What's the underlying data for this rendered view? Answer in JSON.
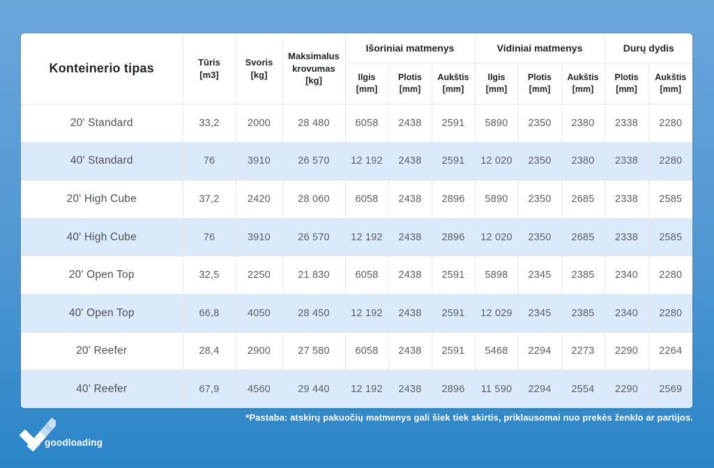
{
  "colors": {
    "background_top": "#6aa6da",
    "background_bottom": "#2a85c8",
    "row_alt": "#dbeafb",
    "card": "#ffffff",
    "header_text": "#1f2226",
    "cell_text": "#5a5e63",
    "footnote_text": "#ffffff"
  },
  "table": {
    "header": {
      "type": "Konteinerio tipas",
      "volume": "Tūris\n[m3]",
      "weight": "Svoris\n[kg]",
      "max_load": "Maksimalus\nkrovumas\n[kg]",
      "group_external": "Išoriniai matmenys",
      "group_internal": "Vidiniai matmenys",
      "group_door": "Durų dydis",
      "sub": [
        "Ilgis\n[mm]",
        "Plotis\n[mm]",
        "Aukštis\n[mm]",
        "Ilgis\n[mm]",
        "Plotis\n[mm]",
        "Aukštis\n[mm]",
        "Plotis\n[mm]",
        "Aukštis\n[mm]"
      ]
    },
    "rows": [
      {
        "cells": [
          "20' Standard",
          "33,2",
          "2000",
          "28 480",
          "6058",
          "2438",
          "2591",
          "5890",
          "2350",
          "2380",
          "2338",
          "2280"
        ]
      },
      {
        "cells": [
          "40' Standard",
          "76",
          "3910",
          "26 570",
          "12 192",
          "2438",
          "2591",
          "12 020",
          "2350",
          "2380",
          "2338",
          "2280"
        ]
      },
      {
        "cells": [
          "20' High Cube",
          "37,2",
          "2420",
          "28 060",
          "6058",
          "2438",
          "2896",
          "5890",
          "2350",
          "2685",
          "2338",
          "2585"
        ]
      },
      {
        "cells": [
          "40' High Cube",
          "76",
          "3910",
          "26 570",
          "12 192",
          "2438",
          "2896",
          "12 020",
          "2350",
          "2685",
          "2338",
          "2585"
        ]
      },
      {
        "cells": [
          "20' Open Top",
          "32,5",
          "2250",
          "21 830",
          "6058",
          "2438",
          "2591",
          "5898",
          "2345",
          "2385",
          "2340",
          "2280"
        ]
      },
      {
        "cells": [
          "40' Open Top",
          "66,8",
          "4050",
          "28 450",
          "12 192",
          "2438",
          "2591",
          "12 029",
          "2345",
          "2385",
          "2340",
          "2280"
        ]
      },
      {
        "cells": [
          "20' Reefer",
          "28,4",
          "2900",
          "27 580",
          "6058",
          "2438",
          "2591",
          "5468",
          "2294",
          "2273",
          "2290",
          "2264"
        ]
      },
      {
        "cells": [
          "40' Reefer",
          "67,9",
          "4560",
          "29 440",
          "12 192",
          "2438",
          "2896",
          "11 590",
          "2294",
          "2554",
          "2290",
          "2569"
        ]
      }
    ]
  },
  "footnote": "*Pastaba: atskirų pakuočių matmenys gali šiek tiek skirtis, priklausomai nuo prekės ženklo ar partijos.",
  "logo": {
    "text": "goodloading",
    "icon": "checkmark-icon"
  }
}
